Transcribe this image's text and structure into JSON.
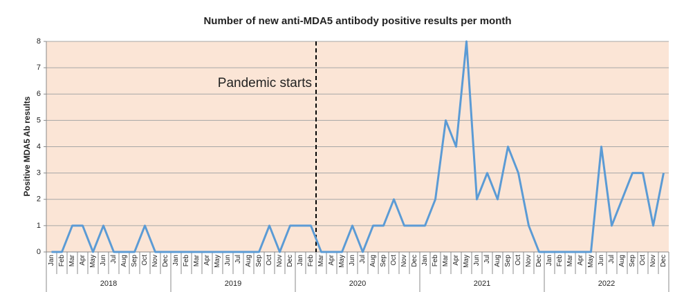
{
  "chart_data": {
    "type": "line",
    "title": "Number of new anti-MDA5 antibody positive results per month",
    "y_label": "Positive MDA5 Ab results",
    "annotation": "Pandemic starts",
    "categories": [
      "Jan",
      "Feb",
      "Mar",
      "Apr",
      "May",
      "Jun",
      "Jul",
      "Aug",
      "Sep",
      "Oct",
      "Nov",
      "Dec",
      "Jan",
      "Feb",
      "Mar",
      "Apr",
      "May",
      "Jun",
      "Jul",
      "Aug",
      "Sep",
      "Oct",
      "Nov",
      "Dec",
      "Jan",
      "Feb",
      "Mar",
      "Apr",
      "May",
      "Jun",
      "Jul",
      "Aug",
      "Sep",
      "Oct",
      "Nov",
      "Dec",
      "Jan",
      "Feb",
      "Mar",
      "Apr",
      "May",
      "Jun",
      "Jul",
      "Aug",
      "Sep",
      "Oct",
      "Nov",
      "Dec",
      "Jan",
      "Feb",
      "Mar",
      "Apr",
      "May",
      "Jun",
      "Jul",
      "Aug",
      "Sep",
      "Oct",
      "Nov",
      "Dec"
    ],
    "years": [
      "2018",
      "2019",
      "2020",
      "2021",
      "2022"
    ],
    "series": [
      {
        "color": "#5b9bd5",
        "values": [
          0,
          0,
          1,
          1,
          0,
          1,
          0,
          0,
          0,
          1,
          0,
          0,
          0,
          0,
          0,
          0,
          0,
          0,
          0,
          0,
          0,
          1,
          0,
          1,
          1,
          1,
          0,
          0,
          0,
          1,
          0,
          1,
          1,
          2,
          1,
          1,
          1,
          2,
          5,
          4,
          8,
          2,
          3,
          2,
          4,
          3,
          1,
          0,
          0,
          0,
          0,
          0,
          0,
          4,
          1,
          2,
          3,
          3,
          1,
          3
        ]
      }
    ],
    "ylim": [
      0,
      8
    ],
    "yticks": [
      0,
      1,
      2,
      3,
      4,
      5,
      6,
      7,
      8
    ],
    "grid": true,
    "plot_background": "#fbe5d6"
  }
}
